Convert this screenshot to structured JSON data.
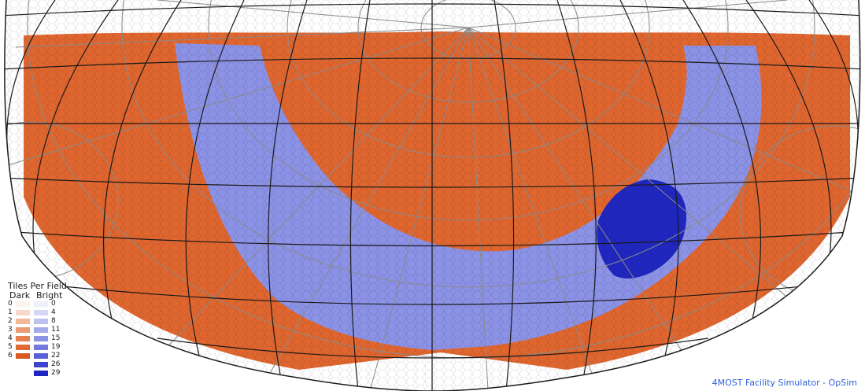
{
  "legend": {
    "title": "Tiles Per Field",
    "dark_header": "Dark",
    "bright_header": "Bright",
    "rows": [
      {
        "dark_label": "0",
        "dark_color": "#fdf3ee",
        "bright_label": "0",
        "bright_color": "#eef0fb"
      },
      {
        "dark_label": "1",
        "dark_color": "#f8d9c9",
        "bright_label": "4",
        "bright_color": "#d4d8f5"
      },
      {
        "dark_label": "2",
        "dark_color": "#f2b898",
        "bright_label": "8",
        "bright_color": "#bcc1f0"
      },
      {
        "dark_label": "3",
        "dark_color": "#ec9a70",
        "bright_label": "11",
        "bright_color": "#a4aaeb"
      },
      {
        "dark_label": "4",
        "dark_color": "#e6804f",
        "bright_label": "15",
        "bright_color": "#8d93e5"
      },
      {
        "dark_label": "5",
        "dark_color": "#e06a35",
        "bright_label": "19",
        "bright_color": "#7479de"
      },
      {
        "dark_label": "6",
        "dark_color": "#d95a20",
        "bright_label": "22",
        "bright_color": "#5b60d6"
      },
      {
        "dark_label": "",
        "dark_color": "",
        "bright_label": "26",
        "bright_color": "#3d43cc"
      },
      {
        "dark_label": "",
        "dark_color": "",
        "bright_label": "29",
        "bright_color": "#1e25c0"
      }
    ]
  },
  "map_colors": {
    "dark_region": "#e0662f",
    "bright_band": "#8c92e6",
    "deep_field": "#2027c0",
    "grid_black": "#1a1a1a",
    "grid_gray": "#8a8a8a"
  },
  "credit": "4MOST Facility Simulator - OpSim"
}
